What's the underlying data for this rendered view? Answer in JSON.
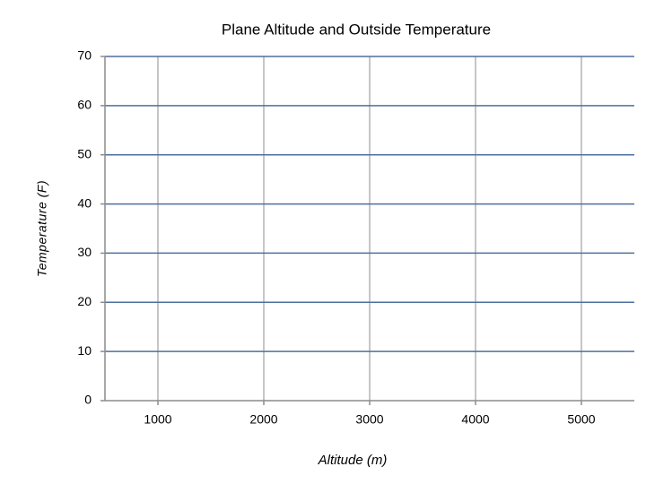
{
  "chart_data": {
    "type": "scatter",
    "title": "Plane Altitude and Outside Temperature",
    "xlabel": "Altitude (m)",
    "ylabel": "Temperature (F)",
    "xlim": [
      500,
      5500
    ],
    "xticks": [
      1000,
      2000,
      3000,
      4000,
      5000
    ],
    "ylim": [
      0,
      70
    ],
    "yticks": [
      0,
      10,
      20,
      30,
      40,
      50,
      60,
      70
    ],
    "grid": true
  }
}
